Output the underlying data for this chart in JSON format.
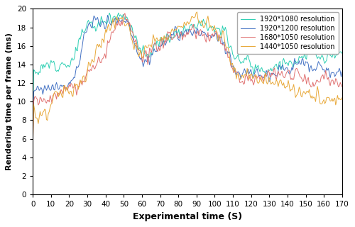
{
  "title": "",
  "xlabel": "Experimental time (S)",
  "ylabel": "Rendering time per frame (ms)",
  "xlim": [
    0,
    170
  ],
  "ylim": [
    0,
    20
  ],
  "xticks": [
    0,
    10,
    20,
    30,
    40,
    50,
    60,
    70,
    80,
    90,
    100,
    110,
    120,
    130,
    140,
    150,
    160,
    170
  ],
  "yticks": [
    0,
    2,
    4,
    6,
    8,
    10,
    12,
    14,
    16,
    18,
    20
  ],
  "legend_labels": [
    "1920*1080 resolution",
    "1920*1200 resolution",
    "1680*1050 resolution",
    "1440*1050 resolution"
  ],
  "colors": [
    "#2dcfb3",
    "#4472c4",
    "#e07070",
    "#e8a838"
  ],
  "linewidth": 0.7,
  "seed": 12,
  "n_points": 340
}
